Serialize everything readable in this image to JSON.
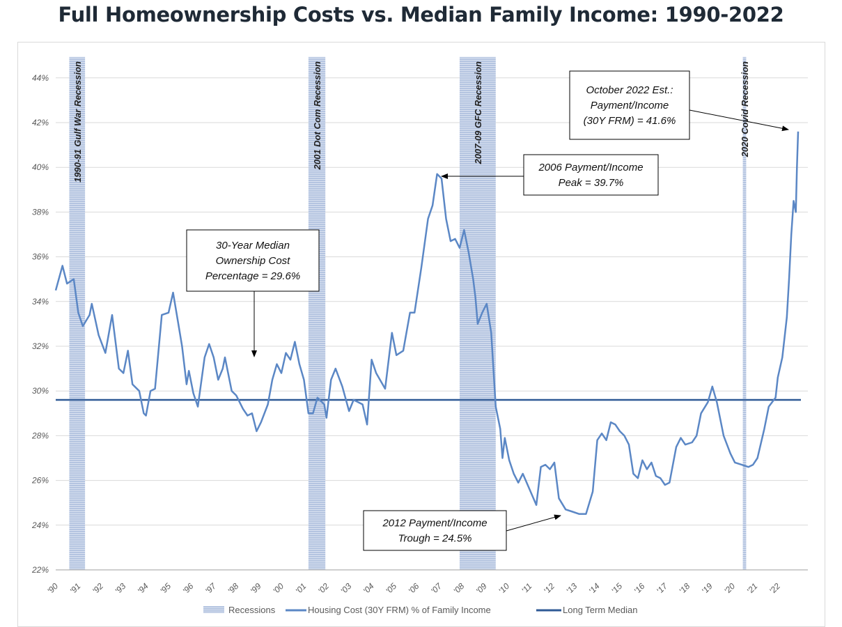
{
  "chart_data": {
    "type": "line",
    "title": "Full Homeownership Costs vs. Median Family Income: 1990-2022",
    "xlabel": "",
    "ylabel": "",
    "xlim": [
      1990,
      2023.3
    ],
    "ylim": [
      22,
      44
    ],
    "grid": true,
    "y_ticks": [
      "22%",
      "24%",
      "26%",
      "28%",
      "30%",
      "32%",
      "34%",
      "36%",
      "38%",
      "40%",
      "42%",
      "44%"
    ],
    "y_tick_values": [
      22,
      24,
      26,
      28,
      30,
      32,
      34,
      36,
      38,
      40,
      42,
      44
    ],
    "x_ticks": [
      "'90",
      "'91",
      "'92",
      "'93",
      "'94",
      "'95",
      "'96",
      "'97",
      "'98",
      "'99",
      "'00",
      "'01",
      "'02",
      "'03",
      "'04",
      "'05",
      "'06",
      "'07",
      "'08",
      "'09",
      "'10",
      "'11",
      "'12",
      "'13",
      "'14",
      "'15",
      "'16",
      "'17",
      "'18",
      "'19",
      "'20",
      "'21",
      "'22"
    ],
    "legend_position": "bottom",
    "legend": [
      "Recessions",
      "Housing Cost (30Y FRM) % of Family Income",
      "Long Term Median"
    ],
    "colors": {
      "series": "#5b87c5",
      "median": "#2f5a96",
      "recession": "#b4c4e0",
      "grid": "#d9d9d9"
    },
    "recessions": [
      {
        "label": "1990-91 Gulf War Recession",
        "start": 1990.6,
        "end": 1991.3
      },
      {
        "label": "2001 Dot Com Recession",
        "start": 2001.2,
        "end": 2001.95
      },
      {
        "label": "2007-09 GFC Recession",
        "start": 2007.9,
        "end": 2009.5
      },
      {
        "label": "2020 Covid Recession",
        "start": 2020.45,
        "end": 2020.6
      }
    ],
    "median": 29.6,
    "series": [
      {
        "name": "Housing Cost (30Y FRM) % of Family Income",
        "x": [
          1990.0,
          1990.3,
          1990.5,
          1990.8,
          1991.0,
          1991.2,
          1991.5,
          1991.6,
          1991.9,
          1992.2,
          1992.5,
          1992.8,
          1993.0,
          1993.2,
          1993.4,
          1993.7,
          1993.9,
          1994.0,
          1994.2,
          1994.4,
          1994.7,
          1995.0,
          1995.2,
          1995.4,
          1995.6,
          1995.8,
          1995.9,
          1996.1,
          1996.3,
          1996.6,
          1996.8,
          1997.0,
          1997.2,
          1997.4,
          1997.5,
          1997.8,
          1998.0,
          1998.3,
          1998.5,
          1998.7,
          1998.9,
          1999.1,
          1999.4,
          1999.6,
          1999.8,
          2000.0,
          2000.2,
          2000.4,
          2000.6,
          2000.8,
          2001.0,
          2001.2,
          2001.4,
          2001.6,
          2001.9,
          2002.0,
          2002.2,
          2002.4,
          2002.7,
          2003.0,
          2003.2,
          2003.6,
          2003.8,
          2004.0,
          2004.2,
          2004.6,
          2004.9,
          2005.1,
          2005.4,
          2005.7,
          2005.9,
          2006.2,
          2006.5,
          2006.7,
          2006.9,
          2007.1,
          2007.3,
          2007.5,
          2007.7,
          2007.9,
          2008.1,
          2008.3,
          2008.5,
          2008.6,
          2008.7,
          2008.9,
          2009.1,
          2009.3,
          2009.5,
          2009.7,
          2009.8,
          2009.9,
          2010.1,
          2010.3,
          2010.5,
          2010.7,
          2011.0,
          2011.3,
          2011.5,
          2011.7,
          2011.9,
          2012.1,
          2012.3,
          2012.6,
          2012.9,
          2013.2,
          2013.5,
          2013.8,
          2014.0,
          2014.2,
          2014.4,
          2014.6,
          2014.8,
          2015.0,
          2015.2,
          2015.4,
          2015.6,
          2015.8,
          2016.0,
          2016.2,
          2016.4,
          2016.6,
          2016.8,
          2017.0,
          2017.2,
          2017.5,
          2017.7,
          2017.9,
          2018.2,
          2018.4,
          2018.6,
          2018.9,
          2019.1,
          2019.3,
          2019.6,
          2019.9,
          2020.1,
          2020.4,
          2020.7,
          2020.9,
          2021.1,
          2021.4,
          2021.6,
          2021.9,
          2022.0,
          2022.2,
          2022.4,
          2022.5,
          2022.6,
          2022.7,
          2022.8,
          2022.85,
          2022.9
        ],
        "values": [
          34.5,
          35.6,
          34.8,
          35.0,
          33.5,
          32.9,
          33.4,
          33.9,
          32.5,
          31.7,
          33.4,
          31.0,
          30.8,
          31.8,
          30.3,
          30.0,
          29.0,
          28.9,
          30.0,
          30.1,
          33.4,
          33.5,
          34.4,
          33.2,
          32.0,
          30.3,
          30.9,
          29.9,
          29.3,
          31.5,
          32.1,
          31.5,
          30.5,
          31.0,
          31.5,
          30.0,
          29.8,
          29.2,
          28.9,
          29.0,
          28.2,
          28.6,
          29.4,
          30.5,
          31.2,
          30.8,
          31.7,
          31.4,
          32.2,
          31.2,
          30.5,
          29.0,
          29.0,
          29.7,
          29.4,
          28.8,
          30.5,
          31.0,
          30.2,
          29.1,
          29.6,
          29.4,
          28.5,
          31.4,
          30.8,
          30.1,
          32.6,
          31.6,
          31.8,
          33.5,
          33.5,
          35.5,
          37.7,
          38.3,
          39.7,
          39.5,
          37.7,
          36.7,
          36.8,
          36.4,
          37.2,
          36.2,
          35.0,
          34.2,
          33.0,
          33.5,
          33.9,
          32.6,
          29.3,
          28.3,
          27.0,
          27.9,
          26.9,
          26.3,
          25.9,
          26.3,
          25.6,
          24.9,
          26.6,
          26.7,
          26.5,
          26.8,
          25.2,
          24.7,
          24.6,
          24.5,
          24.5,
          25.5,
          27.8,
          28.1,
          27.8,
          28.6,
          28.5,
          28.2,
          28.0,
          27.6,
          26.3,
          26.1,
          26.9,
          26.5,
          26.8,
          26.2,
          26.1,
          25.8,
          25.9,
          27.5,
          27.9,
          27.6,
          27.7,
          28.0,
          29.0,
          29.5,
          30.2,
          29.5,
          28.0,
          27.2,
          26.8,
          26.7,
          26.6,
          26.7,
          27.0,
          28.3,
          29.3,
          29.7,
          30.6,
          31.5,
          33.3,
          35.0,
          37.0,
          38.5,
          38.0,
          40.0,
          41.6
        ]
      }
    ],
    "annotations": [
      {
        "lines": [
          "October 2022 Est.:",
          "Payment/Income",
          "(30Y FRM) = 41.6%"
        ]
      },
      {
        "lines": [
          "2006 Payment/Income",
          "Peak = 39.7%"
        ]
      },
      {
        "lines": [
          "30-Year Median",
          "Ownership Cost",
          "Percentage = 29.6%"
        ]
      },
      {
        "lines": [
          "2012 Payment/Income",
          "Trough = 24.5%"
        ]
      }
    ]
  }
}
